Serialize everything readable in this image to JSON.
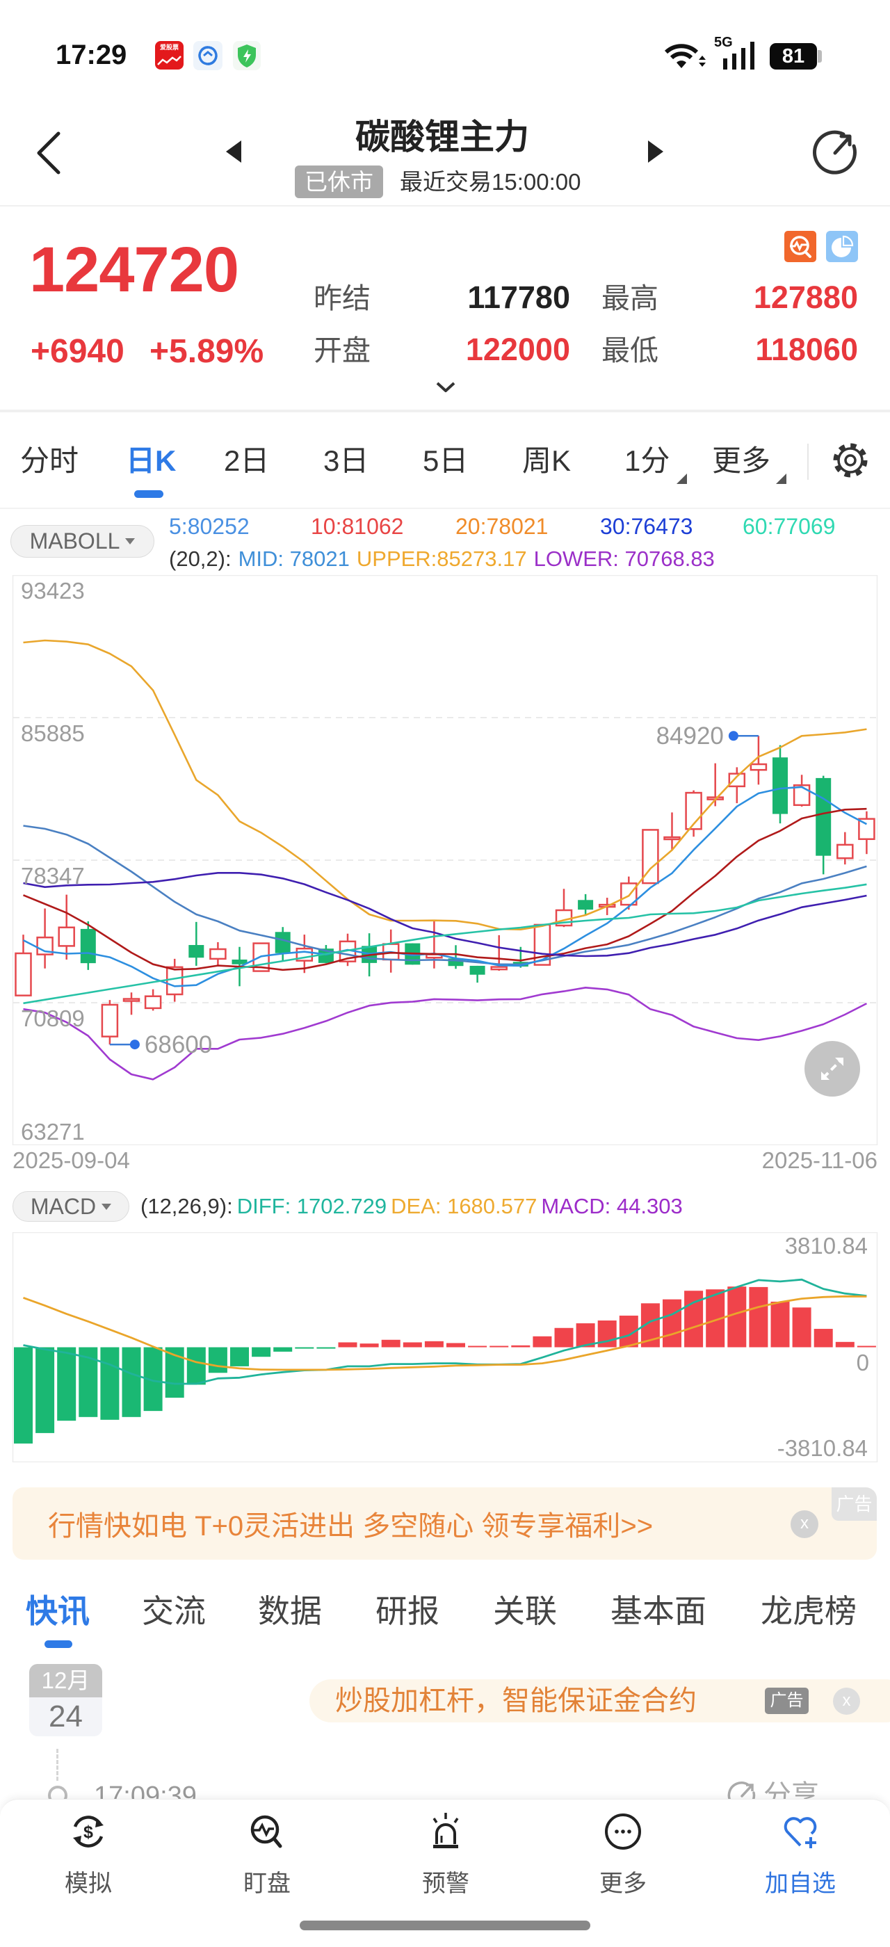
{
  "status_bar": {
    "time": "17:29",
    "app_icon_text": "爱股票",
    "network_label": "5G",
    "battery_level": "81"
  },
  "header": {
    "title": "碳酸锂主力",
    "market_status": "已休市",
    "last_trade": "最近交易15:00:00"
  },
  "quote": {
    "price": "124720",
    "change": "+6940",
    "change_pct": "+5.89%",
    "prev_settle_label": "昨结",
    "prev_settle": "117780",
    "high_label": "最高",
    "high": "127880",
    "open_label": "开盘",
    "open": "122000",
    "low_label": "最低",
    "low": "118060",
    "colors": {
      "up": "#e8383d",
      "neutral": "#222222"
    }
  },
  "period_tabs": [
    {
      "label": "分时"
    },
    {
      "label": "日K",
      "active": true
    },
    {
      "label": "2日"
    },
    {
      "label": "3日"
    },
    {
      "label": "5日"
    },
    {
      "label": "周K"
    },
    {
      "label": "1分",
      "has_dropdown": true
    },
    {
      "label": "更多",
      "has_dropdown": true
    }
  ],
  "indicator": {
    "main_selector": "MABOLL",
    "ma_legend": [
      {
        "label": "5:80252",
        "color": "#4a90e2"
      },
      {
        "label": "10:81062",
        "color": "#e84545"
      },
      {
        "label": "20:78021",
        "color": "#f08c2a"
      },
      {
        "label": "30:76473",
        "color": "#1d3fd6"
      },
      {
        "label": "60:77069",
        "color": "#2fd9b2"
      }
    ],
    "boll_params": "(20,2):",
    "boll_legend": [
      {
        "label": "MID: 78021",
        "color": "#3f8fd8"
      },
      {
        "label": "UPPER:85273.17",
        "color": "#efa82e"
      },
      {
        "label": "LOWER: 70768.83",
        "color": "#9b30c8"
      }
    ],
    "sub_selector": "MACD",
    "macd_params": "(12,26,9):",
    "macd_legend": [
      {
        "label": "DIFF: 1702.729",
        "color": "#1fb59d"
      },
      {
        "label": "DEA: 1680.577",
        "color": "#eeaa30"
      },
      {
        "label": "MACD: 44.303",
        "color": "#9c2bc9"
      }
    ]
  },
  "chart_data": [
    {
      "type": "candlestick",
      "title": "碳酸锂主力 日K (MABOLL)",
      "xlabel": "",
      "ylabel": "",
      "x_labels": [
        "2025-09-04",
        "2025-11-06"
      ],
      "ylim": [
        63271,
        93423
      ],
      "y_ticks": [
        93423,
        85885,
        78347,
        70809,
        63271
      ],
      "grid": true,
      "legend_position": "top",
      "candle_format": [
        "open",
        "high",
        "low",
        "close"
      ],
      "colors": {
        "up": "#e5484d",
        "down": "#19b46f"
      },
      "candles": [
        [
          71190,
          74410,
          71190,
          73420
        ],
        [
          73360,
          75790,
          72620,
          74260
        ],
        [
          73810,
          76520,
          73090,
          74790
        ],
        [
          74710,
          75110,
          72540,
          72900
        ],
        [
          69020,
          70950,
          68600,
          70700
        ],
        [
          70940,
          71350,
          70170,
          70970
        ],
        [
          70520,
          71520,
          70390,
          71150
        ],
        [
          71250,
          73130,
          70860,
          72690
        ],
        [
          73860,
          75080,
          72760,
          73190
        ],
        [
          73130,
          74010,
          72750,
          73640
        ],
        [
          73090,
          73760,
          71680,
          72840
        ],
        [
          72480,
          73950,
          72480,
          73950
        ],
        [
          74550,
          74810,
          73050,
          73430
        ],
        [
          73030,
          74410,
          72380,
          73670
        ],
        [
          73670,
          73860,
          72900,
          72910
        ],
        [
          72990,
          74460,
          72750,
          74050
        ],
        [
          73810,
          74480,
          72200,
          72910
        ],
        [
          73090,
          74680,
          72400,
          73910
        ],
        [
          73950,
          73950,
          72820,
          72820
        ],
        [
          73190,
          75150,
          72620,
          73360
        ],
        [
          73150,
          73850,
          72600,
          72750
        ],
        [
          72760,
          72760,
          71870,
          72290
        ],
        [
          72570,
          74380,
          72500,
          72700
        ],
        [
          72970,
          73760,
          72660,
          72720
        ],
        [
          72810,
          74930,
          72810,
          74930
        ],
        [
          74890,
          76830,
          74810,
          75700
        ],
        [
          76240,
          76550,
          75480,
          75730
        ],
        [
          75920,
          76360,
          75440,
          75950
        ],
        [
          75990,
          77480,
          75730,
          77120
        ],
        [
          77130,
          79950,
          77130,
          79950
        ],
        [
          79490,
          80870,
          78870,
          79520
        ],
        [
          79990,
          82040,
          79590,
          81910
        ],
        [
          81600,
          83470,
          81200,
          81630
        ],
        [
          82250,
          83260,
          81360,
          82920
        ],
        [
          83120,
          84920,
          82340,
          83420
        ],
        [
          83780,
          84430,
          80290,
          80790
        ],
        [
          81260,
          82860,
          81180,
          82310
        ],
        [
          82690,
          82810,
          77600,
          78580
        ],
        [
          78450,
          79830,
          78120,
          79160
        ],
        [
          79460,
          80930,
          78670,
          80530
        ]
      ],
      "series": [
        {
          "name": "UPPER",
          "color": "#e9a62c",
          "values": [
            89856,
            89967,
            89904,
            89757,
            89268,
            88595,
            87330,
            84977,
            82587,
            81790,
            80400,
            79800,
            79060,
            78236,
            77254,
            76275,
            75480,
            75148,
            75148,
            75160,
            75136,
            74989,
            74707,
            74682,
            74866,
            75173,
            75442,
            75909,
            76460,
            77900,
            78880,
            80260,
            81547,
            82771,
            83815,
            84304,
            84917,
            85003,
            85101,
            85273.17
          ]
        },
        {
          "name": "MID",
          "color": "#4a80c2",
          "values": [
            80168,
            80005,
            79700,
            79211,
            78475,
            77740,
            76943,
            76145,
            75480,
            75112,
            74621,
            74376,
            74130,
            73824,
            73556,
            73358,
            73152,
            73089,
            73052,
            73078,
            73045,
            72946,
            72842,
            72833,
            73044,
            73281,
            73510,
            73673,
            73869,
            74185,
            74519,
            74917,
            75327,
            75789,
            76315,
            76652,
            77122,
            77355,
            77672,
            78021
          ]
        },
        {
          "name": "LOWER",
          "color": "#a03ad0",
          "values": [
            70470,
            70286,
            69777,
            69057,
            67811,
            67022,
            66752,
            67389,
            68370,
            68370,
            68859,
            68957,
            69166,
            69473,
            69840,
            70286,
            70654,
            70813,
            70862,
            70997,
            70972,
            70935,
            70985,
            70997,
            71255,
            71412,
            71606,
            71510,
            71238,
            70466,
            70158,
            69546,
            69239,
            68932,
            68834,
            69030,
            69325,
            69668,
            70183,
            70768.83
          ]
        },
        {
          "name": "MA5",
          "color": "#2d8fe0",
          "values": [
            74113,
            73525,
            73402,
            73439,
            73214,
            72724,
            72102,
            71682,
            71740,
            72328,
            72702,
            73262,
            73410,
            73506,
            73360,
            73602,
            73394,
            73490,
            73320,
            73410,
            73150,
            73026,
            72784,
            72764,
            73078,
            73668,
            74356,
            75006,
            75886,
            76890,
            77654,
            78890,
            80026,
            81186,
            81880,
            82134,
            82214,
            81604,
            80852,
            80252
          ]
        },
        {
          "name": "MA10",
          "color": "#b01a1a",
          "values": [
            76497,
            76030,
            75564,
            74928,
            74193,
            73457,
            72843,
            72563,
            72600,
            72771,
            72713,
            72682,
            72546,
            72623,
            72844,
            73152,
            73328,
            73450,
            73413,
            73385,
            73376,
            73210,
            73137,
            73042,
            73244,
            73409,
            73691,
            73895,
            74325,
            74984,
            75661,
            76623,
            77516,
            78536,
            79385,
            79894,
            80552,
            80815,
            81019,
            81062
          ]
        },
        {
          "name": "MA30",
          "color": "#3f1fb0",
          "values": [
            77134,
            76925,
            77012,
            77049,
            77061,
            77134,
            77196,
            77343,
            77538,
            77674,
            77674,
            77587,
            77380,
            77073,
            76645,
            76240,
            75785,
            75234,
            74744,
            74523,
            74193,
            73973,
            73728,
            73556,
            73395,
            73310,
            73273,
            73298,
            73432,
            73713,
            73917,
            74172,
            74400,
            74734,
            75158,
            75485,
            75857,
            76053,
            76252,
            76473
          ]
        },
        {
          "name": "MA60",
          "color": "#26c2a6",
          "values": [
            70781,
            70967,
            71153,
            71339,
            71525,
            71711,
            71897,
            72083,
            72269,
            72455,
            72641,
            72827,
            73013,
            73199,
            73385,
            73571,
            73757,
            73943,
            74129,
            74314,
            74437,
            74560,
            74682,
            74780,
            74928,
            75050,
            75148,
            75234,
            75295,
            75479,
            75516,
            75540,
            75663,
            75847,
            76215,
            76399,
            76583,
            76741,
            76888,
            77069
          ]
        }
      ],
      "annotations": [
        {
          "index": 34,
          "value": 84920,
          "label": "84920",
          "kind": "period-high",
          "side": "left"
        },
        {
          "index": 4,
          "value": 68600,
          "label": "68600",
          "kind": "period-low",
          "side": "right"
        }
      ]
    },
    {
      "type": "bar+line",
      "title": "MACD (12,26,9)",
      "xlabel": "",
      "ylabel": "",
      "ylim": [
        -3810.84,
        3810.84
      ],
      "y_ticks": [
        "3810.84",
        "0",
        "-3810.84"
      ],
      "grid": false,
      "colors": {
        "up": "#f0444b",
        "down": "#1ab873"
      },
      "macd": [
        -3188,
        -2841,
        -2433,
        -2310,
        -2402,
        -2310,
        -2110,
        -1671,
        -1240,
        -847,
        -631,
        -316,
        -146,
        -12,
        -6,
        162,
        123,
        247,
        162,
        200,
        139,
        46,
        46,
        62,
        362,
        639,
        793,
        886,
        1047,
        1455,
        1586,
        1871,
        1917,
        2010,
        1994,
        1509,
        1317,
        609,
        177,
        44.303
      ],
      "series": [
        {
          "name": "DIFF",
          "color": "#20b39a",
          "values": [
            69,
            -69,
            -185,
            -339,
            -570,
            -878,
            -1109,
            -1209,
            -1209,
            -1032,
            -1009,
            -901,
            -824,
            -762,
            -747,
            -631,
            -631,
            -554,
            -554,
            -531,
            -531,
            -570,
            -570,
            -554,
            -339,
            -108,
            69,
            200,
            393,
            855,
            1086,
            1486,
            1740,
            1994,
            2225,
            2179,
            2241,
            1933,
            1779,
            1702.729
          ]
        },
        {
          "name": "DEA",
          "color": "#eaa52a",
          "values": [
            1640,
            1379,
            1102,
            855,
            585,
            316,
            23,
            -261,
            -492,
            -624,
            -701,
            -739,
            -747,
            -747,
            -747,
            -732,
            -716,
            -686,
            -663,
            -639,
            -608,
            -593,
            -578,
            -578,
            -531,
            -416,
            -262,
            -108,
            46,
            238,
            431,
            663,
            894,
            1125,
            1333,
            1494,
            1610,
            1663,
            1686,
            1680.577
          ]
        }
      ]
    }
  ],
  "ad_banner": {
    "text": "行情快如电 T+0灵活进出 多空随心 领专享福利>>",
    "tag": "广告",
    "close": "x"
  },
  "info_tabs": [
    {
      "label": "快讯",
      "active": true
    },
    {
      "label": "交流"
    },
    {
      "label": "数据"
    },
    {
      "label": "研报"
    },
    {
      "label": "关联"
    },
    {
      "label": "基本面"
    },
    {
      "label": "龙虎榜"
    }
  ],
  "news": {
    "month": "12月",
    "day": "24",
    "ad_text": "炒股加杠杆，智能保证金合约",
    "ad_tag": "广告",
    "ad_close": "x",
    "item_time": "17:09:39",
    "share_label": "分享"
  },
  "bottom_nav": [
    {
      "label": "模拟",
      "icon": "simulate-icon"
    },
    {
      "label": "盯盘",
      "icon": "watch-icon"
    },
    {
      "label": "预警",
      "icon": "alert-icon"
    },
    {
      "label": "更多",
      "icon": "more-icon"
    },
    {
      "label": "加自选",
      "icon": "add-favorite-icon",
      "active": true,
      "color": "#2f74e0"
    }
  ]
}
